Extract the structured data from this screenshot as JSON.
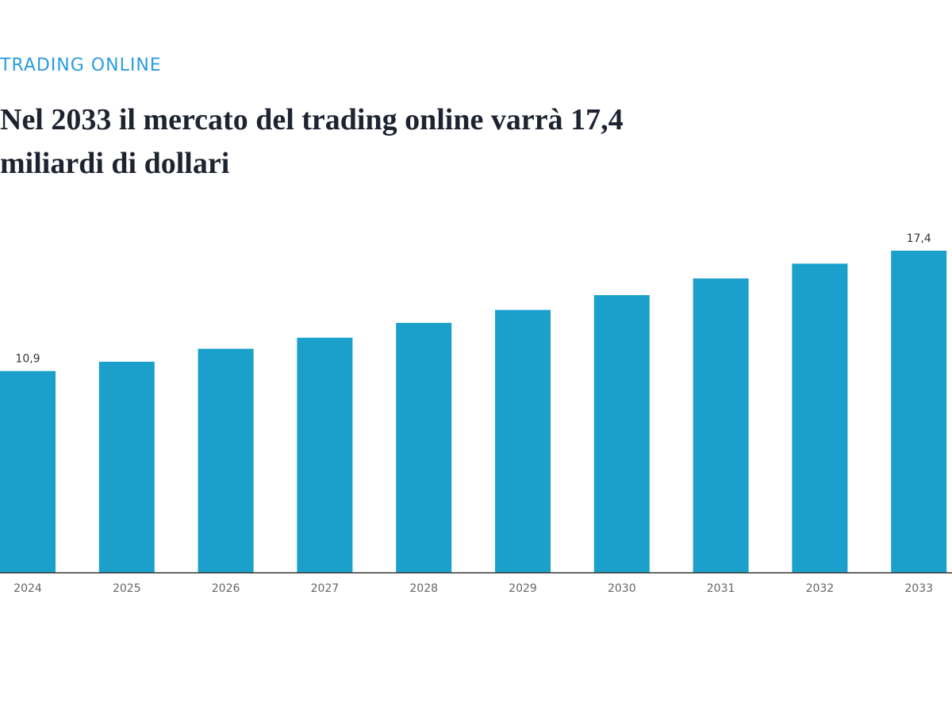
{
  "chart_data": {
    "type": "bar",
    "kicker": "TRADING ONLINE",
    "title": "Nel 2033 il mercato del trading online varrà 17,4 miliardi di dollari",
    "categories": [
      "2024",
      "2025",
      "2026",
      "2027",
      "2028",
      "2029",
      "2030",
      "2031",
      "2032",
      "2033"
    ],
    "values": [
      10.9,
      11.4,
      12.1,
      12.7,
      13.5,
      14.2,
      15.0,
      15.9,
      16.7,
      17.4
    ],
    "value_labels": [
      "10,9",
      null,
      null,
      null,
      null,
      null,
      null,
      null,
      null,
      "17,4"
    ],
    "color": "#1aa0cb"
  }
}
